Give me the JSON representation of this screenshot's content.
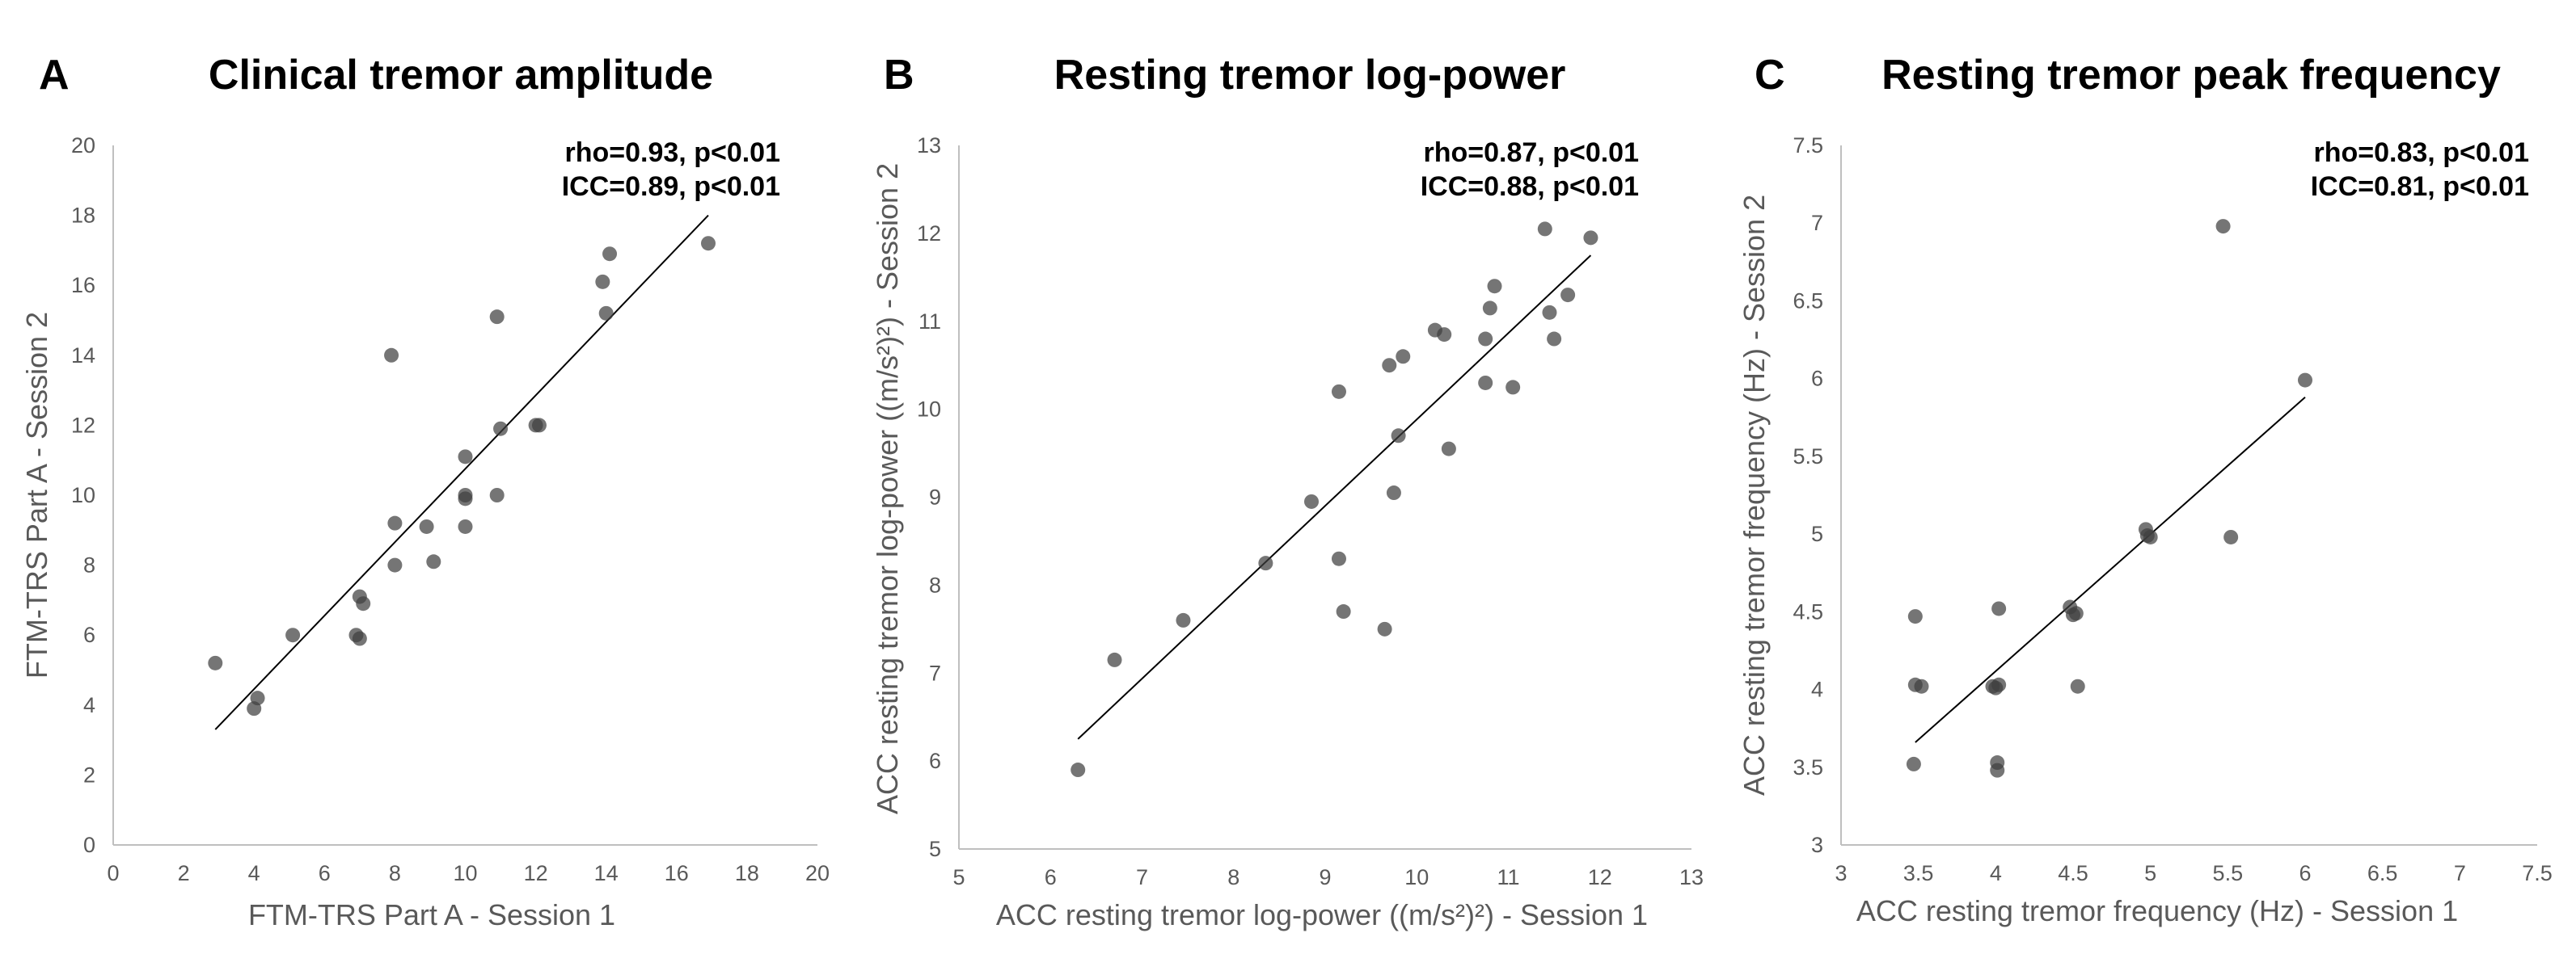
{
  "chart_data": [
    {
      "type": "scatter",
      "panel": "A",
      "title": "Clinical tremor amplitude",
      "xlabel": "FTM-TRS Part A - Session 1",
      "ylabel": "FTM-TRS Part A - Session 2",
      "xlim": [
        0,
        20
      ],
      "ylim": [
        0,
        20
      ],
      "xticks": [
        0,
        2,
        4,
        6,
        8,
        10,
        12,
        14,
        16,
        18,
        20
      ],
      "yticks": [
        0,
        2,
        4,
        6,
        8,
        10,
        12,
        14,
        16,
        18,
        20
      ],
      "xtick_labels": [
        "0",
        "2",
        "4",
        "6",
        "8",
        "10",
        "12",
        "14",
        "16",
        "18",
        "20"
      ],
      "ytick_labels": [
        "0",
        "2",
        "4",
        "6",
        "8",
        "10",
        "12",
        "14",
        "16",
        "18",
        "20"
      ],
      "stats": [
        "rho=0.93, p<0.01",
        "ICC=0.89, p<0.01"
      ],
      "grid": false,
      "trendline": {
        "x": [
          2.9,
          16.9
        ],
        "y": [
          3.3,
          18.0
        ]
      },
      "points": {
        "x": [
          2.9,
          4.0,
          4.1,
          5.1,
          6.9,
          7.0,
          7.0,
          7.1,
          7.9,
          8.0,
          8.0,
          8.9,
          9.1,
          10.0,
          10.0,
          10.0,
          10.0,
          10.9,
          10.9,
          11.0,
          12.0,
          12.1,
          13.9,
          14.0,
          14.1,
          16.9
        ],
        "y": [
          5.2,
          3.9,
          4.2,
          6.0,
          6.0,
          7.1,
          5.9,
          6.9,
          14.0,
          9.2,
          8.0,
          9.1,
          8.1,
          11.1,
          10.0,
          9.9,
          9.1,
          15.1,
          10.0,
          11.9,
          12.0,
          12.0,
          16.1,
          15.2,
          16.9,
          17.2
        ]
      }
    },
    {
      "type": "scatter",
      "panel": "B",
      "title": "Resting tremor log-power",
      "xlabel": "ACC resting tremor log-power ((m/s²)²) - Session 1",
      "ylabel": "ACC resting tremor log-power ((m/s²)²) - Session 2",
      "xlim": [
        5,
        13
      ],
      "ylim": [
        5,
        13
      ],
      "xticks": [
        5,
        6,
        7,
        8,
        9,
        10,
        11,
        12,
        13
      ],
      "yticks": [
        5,
        6,
        7,
        8,
        9,
        10,
        11,
        12,
        13
      ],
      "xtick_labels": [
        "5",
        "6",
        "7",
        "8",
        "9",
        "10",
        "11",
        "12",
        "13"
      ],
      "ytick_labels": [
        "5",
        "6",
        "7",
        "8",
        "9",
        "10",
        "11",
        "12",
        "13"
      ],
      "stats": [
        "rho=0.87, p<0.01",
        "ICC=0.88, p<0.01"
      ],
      "grid": false,
      "trendline": {
        "x": [
          6.3,
          11.9
        ],
        "y": [
          6.25,
          11.75
        ]
      },
      "points": {
        "x": [
          6.3,
          6.7,
          7.45,
          8.35,
          8.85,
          9.15,
          9.15,
          9.2,
          9.65,
          9.7,
          9.75,
          9.8,
          9.85,
          10.2,
          10.3,
          10.35,
          10.75,
          10.75,
          10.8,
          10.85,
          11.05,
          11.4,
          11.45,
          11.5,
          11.65,
          11.9
        ],
        "y": [
          5.9,
          7.15,
          7.6,
          8.25,
          8.95,
          10.2,
          8.3,
          7.7,
          7.5,
          10.5,
          9.05,
          9.7,
          10.6,
          10.9,
          10.85,
          9.55,
          10.8,
          10.3,
          11.15,
          11.4,
          10.25,
          12.05,
          11.1,
          10.8,
          11.3,
          11.95
        ]
      }
    },
    {
      "type": "scatter",
      "panel": "C",
      "title": "Resting tremor peak frequency",
      "xlabel": "ACC resting tremor frequency (Hz) - Session 1",
      "ylabel": "ACC resting tremor frequency (Hz) - Session 2",
      "xlim": [
        3,
        7.5
      ],
      "ylim": [
        3,
        7.5
      ],
      "xticks": [
        3,
        3.5,
        4,
        4.5,
        5,
        5.5,
        6,
        6.5,
        7,
        7.5
      ],
      "yticks": [
        3,
        3.5,
        4,
        4.5,
        5,
        5.5,
        6,
        6.5,
        7,
        7.5
      ],
      "xtick_labels": [
        "3",
        "3.5",
        "4",
        "4.5",
        "5",
        "5.5",
        "6",
        "6.5",
        "7",
        "7.5"
      ],
      "ytick_labels": [
        "3",
        "3.5",
        "4",
        "4.5",
        "5",
        "5.5",
        "6",
        "6.5",
        "7",
        "7.5"
      ],
      "stats": [
        "rho=0.83, p<0.01",
        "ICC=0.81, p<0.01"
      ],
      "grid": false,
      "trendline": {
        "x": [
          3.48,
          6.0
        ],
        "y": [
          3.66,
          5.88
        ]
      },
      "points": {
        "x": [
          3.47,
          3.48,
          3.48,
          3.52,
          3.98,
          4.0,
          4.01,
          4.01,
          4.02,
          4.02,
          4.48,
          4.5,
          4.52,
          4.53,
          4.97,
          4.98,
          5.0,
          5.47,
          5.52,
          6.0
        ],
        "y": [
          3.52,
          4.03,
          4.47,
          4.02,
          4.02,
          4.01,
          3.48,
          3.53,
          4.52,
          4.03,
          4.53,
          4.48,
          4.49,
          4.02,
          5.03,
          4.99,
          4.98,
          6.98,
          4.98,
          5.99
        ]
      }
    }
  ]
}
